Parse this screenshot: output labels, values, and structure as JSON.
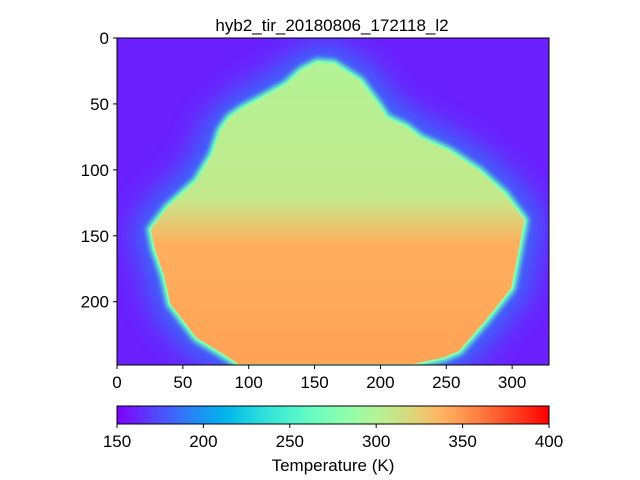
{
  "chart_data": {
    "type": "heatmap",
    "title": "hyb2_tir_20180806_172118_l2",
    "image_shape": {
      "width": 328,
      "height": 248
    },
    "xlim": [
      0,
      328
    ],
    "ylim": [
      248,
      0
    ],
    "x_ticks": [
      "0",
      "50",
      "100",
      "150",
      "200",
      "250",
      "300"
    ],
    "y_ticks": [
      "0",
      "50",
      "100",
      "150",
      "200"
    ],
    "x_tick_values": [
      0,
      50,
      100,
      150,
      200,
      250,
      300
    ],
    "y_tick_values": [
      0,
      50,
      100,
      150,
      200
    ],
    "colormap": "rainbow",
    "colorbar": {
      "label": "Temperature (K)",
      "range": [
        150,
        400
      ],
      "ticks": [
        "150",
        "200",
        "250",
        "300",
        "350",
        "400"
      ],
      "tick_values": [
        150,
        200,
        250,
        300,
        350,
        400
      ],
      "orientation": "horizontal",
      "placement": "bottom"
    },
    "object": {
      "name_shown": "",
      "outline": [
        [
          152,
          18
        ],
        [
          165,
          19
        ],
        [
          185,
          32
        ],
        [
          200,
          52
        ],
        [
          205,
          60
        ],
        [
          220,
          67
        ],
        [
          230,
          75
        ],
        [
          252,
          85
        ],
        [
          275,
          100
        ],
        [
          295,
          118
        ],
        [
          310,
          138
        ],
        [
          300,
          190
        ],
        [
          280,
          215
        ],
        [
          260,
          238
        ],
        [
          248,
          243
        ],
        [
          225,
          248
        ],
        [
          92,
          248
        ],
        [
          80,
          240
        ],
        [
          60,
          228
        ],
        [
          40,
          202
        ],
        [
          35,
          180
        ],
        [
          28,
          160
        ],
        [
          25,
          145
        ],
        [
          38,
          128
        ],
        [
          60,
          108
        ],
        [
          72,
          88
        ],
        [
          78,
          70
        ],
        [
          85,
          60
        ],
        [
          95,
          53
        ],
        [
          108,
          46
        ],
        [
          128,
          35
        ],
        [
          140,
          24
        ]
      ],
      "regions": [
        {
          "description": "upper cooler region",
          "temperature": 300
        },
        {
          "description": "lower warmer region",
          "temperature": 345
        },
        {
          "description": "limb edge",
          "temperature": 265
        }
      ]
    },
    "background_temperature": 160,
    "halo_temperature": 185
  }
}
